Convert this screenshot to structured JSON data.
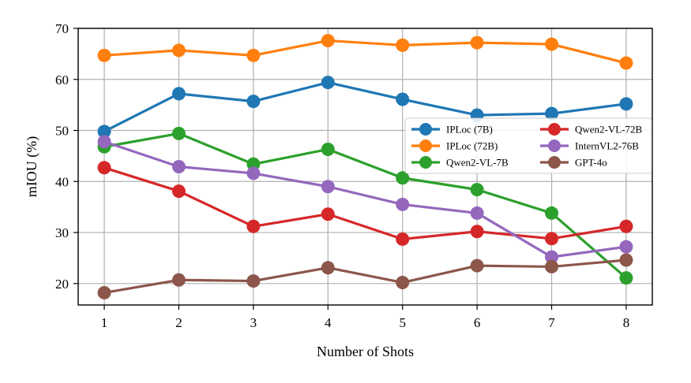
{
  "chart_data": {
    "type": "line",
    "title": "",
    "xlabel": "Number of Shots",
    "ylabel": "mIOU (%)",
    "x": [
      1,
      2,
      3,
      4,
      5,
      6,
      7,
      8
    ],
    "xlim": [
      0.65,
      8.35
    ],
    "ylim": [
      15.8,
      70
    ],
    "yticks": [
      20,
      30,
      40,
      50,
      60,
      70
    ],
    "grid": true,
    "legend_position": "center-right",
    "legend_columns": 2,
    "series": [
      {
        "name": "IPLoc (7B)",
        "color": "#1f77b4",
        "values": [
          49.8,
          57.2,
          55.7,
          59.4,
          56.1,
          53.0,
          53.3,
          55.2
        ]
      },
      {
        "name": "IPLoc (72B)",
        "color": "#ff7f0e",
        "values": [
          64.7,
          65.7,
          64.7,
          67.6,
          66.7,
          67.2,
          66.9,
          63.2
        ]
      },
      {
        "name": "Qwen2-VL-7B",
        "color": "#2ca02c",
        "values": [
          46.8,
          49.4,
          43.4,
          46.3,
          40.7,
          38.4,
          33.8,
          21.1
        ]
      },
      {
        "name": "Qwen2-VL-72B",
        "color": "#d62728",
        "values": [
          42.7,
          38.1,
          31.2,
          33.6,
          28.7,
          30.2,
          28.8,
          31.2
        ]
      },
      {
        "name": "InternVL2-76B",
        "color": "#9467bd",
        "values": [
          47.8,
          42.9,
          41.6,
          39.0,
          35.5,
          33.8,
          25.2,
          27.2
        ]
      },
      {
        "name": "GPT-4o",
        "color": "#8c564b",
        "values": [
          18.2,
          20.7,
          20.5,
          23.1,
          20.2,
          23.5,
          23.3,
          24.6
        ]
      }
    ]
  }
}
